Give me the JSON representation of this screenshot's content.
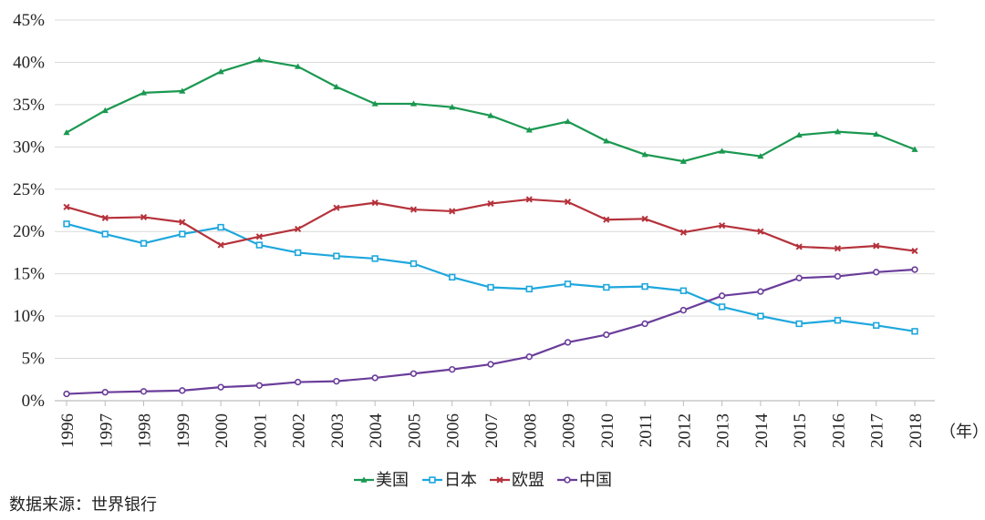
{
  "chart_data": {
    "type": "line",
    "title": "",
    "xlabel": "（年）",
    "ylabel": "",
    "ylim": [
      0,
      45
    ],
    "y_ticks": [
      "0%",
      "5%",
      "10%",
      "15%",
      "20%",
      "25%",
      "30%",
      "35%",
      "40%",
      "45%"
    ],
    "y_tick_values": [
      0,
      5,
      10,
      15,
      20,
      25,
      30,
      35,
      40,
      45
    ],
    "grid": true,
    "legend_position": "bottom-center",
    "categories": [
      "1996",
      "1997",
      "1998",
      "1999",
      "2000",
      "2001",
      "2002",
      "2003",
      "2004",
      "2005",
      "2006",
      "2007",
      "2008",
      "2009",
      "2010",
      "2011",
      "2012",
      "2013",
      "2014",
      "2015",
      "2016",
      "2017",
      "2018"
    ],
    "series": [
      {
        "name": "美国",
        "color": "#1a9850",
        "marker": "triangle",
        "values": [
          31.7,
          34.3,
          36.4,
          36.6,
          38.9,
          40.3,
          39.5,
          37.1,
          35.1,
          35.1,
          34.7,
          33.7,
          32.0,
          33.0,
          30.7,
          29.1,
          28.3,
          29.5,
          28.9,
          31.4,
          31.8,
          31.5,
          29.7
        ]
      },
      {
        "name": "日本",
        "color": "#1ea7dd",
        "marker": "square",
        "values": [
          20.9,
          19.7,
          18.6,
          19.7,
          20.5,
          18.4,
          17.5,
          17.1,
          16.8,
          16.2,
          14.6,
          13.4,
          13.2,
          13.8,
          13.4,
          13.5,
          13.0,
          11.1,
          10.0,
          9.1,
          9.5,
          8.9,
          8.2
        ]
      },
      {
        "name": "欧盟",
        "color": "#b5323b",
        "marker": "x",
        "values": [
          22.9,
          21.6,
          21.7,
          21.1,
          18.4,
          19.4,
          20.3,
          22.8,
          23.4,
          22.6,
          22.4,
          23.3,
          23.8,
          23.5,
          21.4,
          21.5,
          19.9,
          20.7,
          20.0,
          18.2,
          18.0,
          18.3,
          17.7
        ]
      },
      {
        "name": "中国",
        "color": "#6a3d9a",
        "marker": "circle",
        "values": [
          0.8,
          1.0,
          1.1,
          1.2,
          1.6,
          1.8,
          2.2,
          2.3,
          2.7,
          3.2,
          3.7,
          4.3,
          5.2,
          6.9,
          7.8,
          9.1,
          10.7,
          12.4,
          12.9,
          14.5,
          14.7,
          15.2,
          15.5
        ]
      }
    ]
  },
  "source_note": "数据来源：世界银行"
}
